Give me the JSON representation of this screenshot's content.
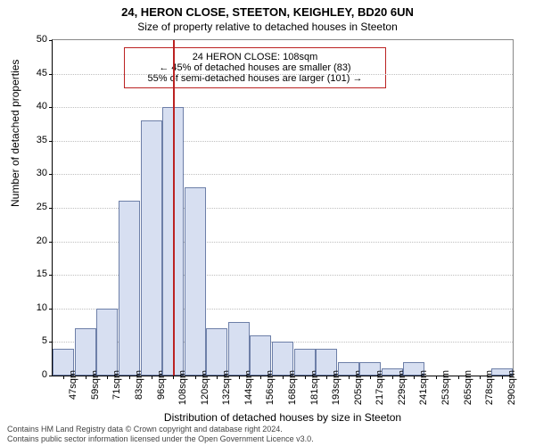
{
  "title": "24, HERON CLOSE, STEETON, KEIGHLEY, BD20 6UN",
  "subtitle": "Size of property relative to detached houses in Steeton",
  "chart": {
    "type": "histogram",
    "ylabel": "Number of detached properties",
    "xlabel": "Distribution of detached houses by size in Steeton",
    "ylim": [
      0,
      50
    ],
    "ytick_step": 5,
    "bar_fill": "#d7dff1",
    "bar_border": "#6d7fa8",
    "grid_color": "#bfbfbf",
    "marker_color": "#bb2222",
    "marker_x": 108,
    "categories": [
      "47sqm",
      "59sqm",
      "71sqm",
      "83sqm",
      "96sqm",
      "108sqm",
      "120sqm",
      "132sqm",
      "144sqm",
      "156sqm",
      "168sqm",
      "181sqm",
      "193sqm",
      "205sqm",
      "217sqm",
      "229sqm",
      "241sqm",
      "253sqm",
      "265sqm",
      "278sqm",
      "290sqm"
    ],
    "values": [
      4,
      7,
      10,
      26,
      38,
      40,
      28,
      7,
      8,
      6,
      5,
      4,
      4,
      2,
      2,
      1,
      2,
      0,
      0,
      0,
      1
    ]
  },
  "annotation": {
    "line1": "24 HERON CLOSE: 108sqm",
    "line2": "← 45% of detached houses are smaller (83)",
    "line3": "55% of semi-detached houses are larger (101) →"
  },
  "footer": {
    "line1": "Contains HM Land Registry data © Crown copyright and database right 2024.",
    "line2": "Contains public sector information licensed under the Open Government Licence v3.0."
  }
}
